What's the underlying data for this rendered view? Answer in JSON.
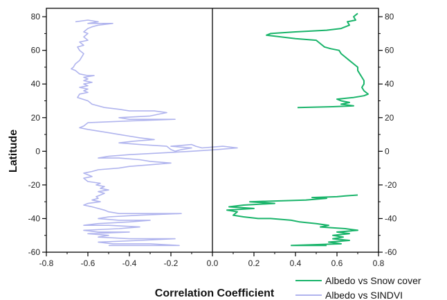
{
  "chart_data": {
    "type": "line",
    "xlabel": "Correlation Coefficient",
    "ylabel": "Latitude",
    "xlim": [
      -0.8,
      0.8
    ],
    "ylim": [
      -60,
      85
    ],
    "x_ticks": [
      -0.8,
      -0.6,
      -0.4,
      -0.2,
      0.0,
      0.2,
      0.4,
      0.6,
      0.8
    ],
    "x_tick_labels": [
      "-0.8",
      "-0.6",
      "-0.4",
      "-0.2",
      "0.0",
      "0.2",
      "0.4",
      "0.6",
      "0.8"
    ],
    "y_ticks": [
      -60,
      -40,
      -20,
      0,
      20,
      40,
      60,
      80
    ],
    "y_tick_labels": [
      "-60",
      "-40",
      "-20",
      "0",
      "20",
      "40",
      "60",
      "80"
    ],
    "vertical_reference_line_x": 0.0,
    "legend_position": "bottom-right, outside plot",
    "series": [
      {
        "name": "Albedo vs Snow cover",
        "color": "#19b46a",
        "segments": [
          [
            [
              0.7,
              82
            ],
            [
              0.68,
              80
            ],
            [
              0.69,
              78
            ],
            [
              0.65,
              77
            ],
            [
              0.66,
              75
            ],
            [
              0.62,
              73
            ],
            [
              0.55,
              72
            ],
            [
              0.4,
              71
            ],
            [
              0.28,
              70
            ],
            [
              0.26,
              69
            ],
            [
              0.4,
              67
            ],
            [
              0.5,
              66
            ],
            [
              0.52,
              64
            ],
            [
              0.54,
              62
            ],
            [
              0.57,
              61
            ],
            [
              0.61,
              60
            ],
            [
              0.62,
              58
            ],
            [
              0.64,
              56
            ],
            [
              0.66,
              54
            ],
            [
              0.68,
              52
            ],
            [
              0.7,
              50
            ],
            [
              0.7,
              48
            ],
            [
              0.71,
              46
            ],
            [
              0.72,
              44
            ],
            [
              0.73,
              42
            ],
            [
              0.73,
              40
            ],
            [
              0.72,
              38
            ],
            [
              0.73,
              36
            ],
            [
              0.75,
              34
            ],
            [
              0.73,
              33
            ],
            [
              0.68,
              32
            ],
            [
              0.6,
              31
            ],
            [
              0.62,
              30
            ],
            [
              0.66,
              29
            ],
            [
              0.62,
              28
            ],
            [
              0.68,
              27
            ],
            [
              0.58,
              26.5
            ],
            [
              0.41,
              26
            ]
          ],
          [
            [
              0.7,
              -26
            ],
            [
              0.64,
              -26.5
            ],
            [
              0.6,
              -27
            ],
            [
              0.48,
              -27.5
            ],
            [
              0.55,
              -28
            ],
            [
              0.45,
              -29
            ],
            [
              0.18,
              -30
            ],
            [
              0.3,
              -31
            ],
            [
              0.15,
              -32
            ],
            [
              0.08,
              -33
            ],
            [
              0.2,
              -34
            ],
            [
              0.07,
              -35
            ],
            [
              0.12,
              -36
            ],
            [
              0.1,
              -38
            ],
            [
              0.15,
              -39
            ],
            [
              0.22,
              -40
            ],
            [
              0.28,
              -40
            ],
            [
              0.38,
              -41
            ],
            [
              0.42,
              -42
            ],
            [
              0.5,
              -43
            ],
            [
              0.56,
              -44
            ],
            [
              0.52,
              -45
            ],
            [
              0.64,
              -46
            ],
            [
              0.7,
              -47
            ],
            [
              0.6,
              -48
            ],
            [
              0.66,
              -49
            ],
            [
              0.58,
              -50
            ],
            [
              0.63,
              -51
            ],
            [
              0.58,
              -52
            ],
            [
              0.66,
              -53
            ],
            [
              0.56,
              -54
            ],
            [
              0.62,
              -55
            ],
            [
              0.38,
              -56
            ],
            [
              0.55,
              -56
            ]
          ]
        ]
      },
      {
        "name": "Albedo vs SINDVI",
        "color": "#b0b4ee",
        "segments": [
          [
            [
              -0.66,
              77
            ],
            [
              -0.6,
              78
            ],
            [
              -0.55,
              77
            ],
            [
              -0.6,
              76
            ],
            [
              -0.48,
              76
            ],
            [
              -0.55,
              75
            ],
            [
              -0.58,
              74
            ],
            [
              -0.6,
              73
            ],
            [
              -0.62,
              71
            ],
            [
              -0.6,
              70
            ],
            [
              -0.62,
              68
            ],
            [
              -0.6,
              66
            ],
            [
              -0.64,
              65
            ],
            [
              -0.62,
              63
            ],
            [
              -0.65,
              62
            ],
            [
              -0.64,
              60
            ],
            [
              -0.62,
              58
            ],
            [
              -0.63,
              56
            ],
            [
              -0.64,
              54
            ],
            [
              -0.66,
              52
            ],
            [
              -0.67,
              50
            ],
            [
              -0.68,
              49
            ],
            [
              -0.66,
              48
            ],
            [
              -0.64,
              46
            ],
            [
              -0.6,
              45
            ],
            [
              -0.57,
              45
            ],
            [
              -0.62,
              44
            ],
            [
              -0.6,
              43
            ],
            [
              -0.62,
              42
            ],
            [
              -0.58,
              41
            ],
            [
              -0.62,
              40
            ],
            [
              -0.6,
              39
            ],
            [
              -0.64,
              38
            ],
            [
              -0.6,
              37
            ],
            [
              -0.62,
              36
            ],
            [
              -0.6,
              35
            ],
            [
              -0.64,
              34
            ],
            [
              -0.65,
              32
            ],
            [
              -0.6,
              30
            ],
            [
              -0.58,
              28
            ],
            [
              -0.52,
              26
            ],
            [
              -0.45,
              25
            ],
            [
              -0.4,
              24
            ],
            [
              -0.28,
              24
            ],
            [
              -0.22,
              23
            ],
            [
              -0.26,
              22
            ],
            [
              -0.3,
              21
            ],
            [
              -0.45,
              20
            ],
            [
              -0.4,
              19
            ],
            [
              -0.18,
              19
            ],
            [
              -0.4,
              18
            ],
            [
              -0.6,
              17
            ],
            [
              -0.62,
              15
            ],
            [
              -0.64,
              14
            ],
            [
              -0.6,
              13
            ],
            [
              -0.55,
              12
            ],
            [
              -0.5,
              11
            ],
            [
              -0.45,
              10
            ],
            [
              -0.4,
              9
            ],
            [
              -0.35,
              8
            ],
            [
              -0.28,
              7
            ],
            [
              -0.38,
              6
            ],
            [
              -0.45,
              5
            ],
            [
              -0.35,
              4
            ],
            [
              -0.22,
              3
            ],
            [
              -0.2,
              1
            ],
            [
              -0.18,
              0
            ],
            [
              -0.15,
              1
            ],
            [
              -0.1,
              2
            ],
            [
              -0.2,
              3
            ],
            [
              -0.1,
              4
            ],
            [
              -0.08,
              3
            ],
            [
              -0.05,
              2
            ],
            [
              0.05,
              3
            ],
            [
              0.12,
              2
            ],
            [
              0.02,
              1
            ],
            [
              -0.1,
              0
            ],
            [
              -0.25,
              -1
            ],
            [
              -0.4,
              -2
            ],
            [
              -0.5,
              -3
            ],
            [
              -0.55,
              -4
            ],
            [
              -0.45,
              -4
            ],
            [
              -0.35,
              -5
            ],
            [
              -0.3,
              -6
            ],
            [
              -0.2,
              -7
            ],
            [
              -0.3,
              -8
            ],
            [
              -0.4,
              -9
            ],
            [
              -0.45,
              -10
            ],
            [
              -0.55,
              -11
            ],
            [
              -0.58,
              -12
            ],
            [
              -0.62,
              -13
            ],
            [
              -0.6,
              -14
            ],
            [
              -0.58,
              -15
            ],
            [
              -0.62,
              -16
            ],
            [
              -0.6,
              -18
            ],
            [
              -0.54,
              -19
            ],
            [
              -0.56,
              -20
            ],
            [
              -0.52,
              -21
            ],
            [
              -0.54,
              -22
            ],
            [
              -0.5,
              -23
            ],
            [
              -0.55,
              -24
            ],
            [
              -0.52,
              -25
            ],
            [
              -0.54,
              -26
            ],
            [
              -0.56,
              -27
            ],
            [
              -0.55,
              -28
            ],
            [
              -0.58,
              -29
            ],
            [
              -0.54,
              -30
            ],
            [
              -0.6,
              -31
            ],
            [
              -0.62,
              -32
            ],
            [
              -0.58,
              -33
            ],
            [
              -0.55,
              -34
            ],
            [
              -0.52,
              -35
            ],
            [
              -0.5,
              -36
            ],
            [
              -0.45,
              -37
            ],
            [
              -0.35,
              -37
            ],
            [
              -0.25,
              -37
            ],
            [
              -0.15,
              -37
            ],
            [
              -0.35,
              -38
            ],
            [
              -0.5,
              -39
            ],
            [
              -0.55,
              -40
            ],
            [
              -0.45,
              -41
            ],
            [
              -0.3,
              -41
            ],
            [
              -0.4,
              -42
            ],
            [
              -0.55,
              -43
            ],
            [
              -0.62,
              -44
            ],
            [
              -0.5,
              -44
            ],
            [
              -0.35,
              -45
            ],
            [
              -0.45,
              -46
            ],
            [
              -0.62,
              -47
            ],
            [
              -0.55,
              -48
            ],
            [
              -0.4,
              -48
            ],
            [
              -0.6,
              -49
            ],
            [
              -0.5,
              -50
            ],
            [
              -0.55,
              -51
            ],
            [
              -0.4,
              -52
            ],
            [
              -0.3,
              -52
            ],
            [
              -0.18,
              -52
            ],
            [
              -0.35,
              -53
            ],
            [
              -0.55,
              -54
            ],
            [
              -0.48,
              -55
            ],
            [
              -0.3,
              -55
            ],
            [
              -0.16,
              -56
            ],
            [
              -0.4,
              -56
            ],
            [
              -0.5,
              -56
            ]
          ]
        ]
      }
    ]
  }
}
